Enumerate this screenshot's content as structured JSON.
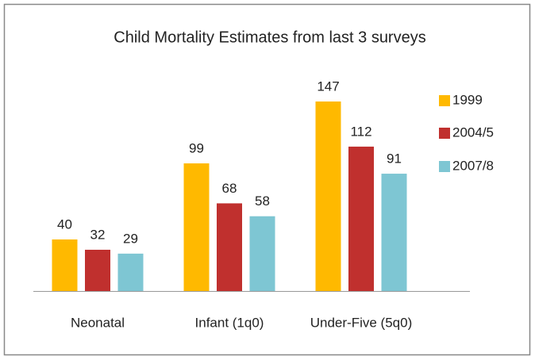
{
  "chart_data": {
    "type": "bar",
    "title": "Child Mortality Estimates from last 3 surveys",
    "categories": [
      "Neonatal",
      "Infant (1q0)",
      "Under-Five (5q0)"
    ],
    "series": [
      {
        "name": "1999",
        "color": "#ffb900",
        "values": [
          40,
          99,
          147
        ]
      },
      {
        "name": "2004/5",
        "color": "#c0302e",
        "values": [
          32,
          68,
          112
        ]
      },
      {
        "name": "2007/8",
        "color": "#7ec6d3",
        "values": [
          29,
          58,
          91
        ]
      }
    ],
    "legend": "right"
  }
}
